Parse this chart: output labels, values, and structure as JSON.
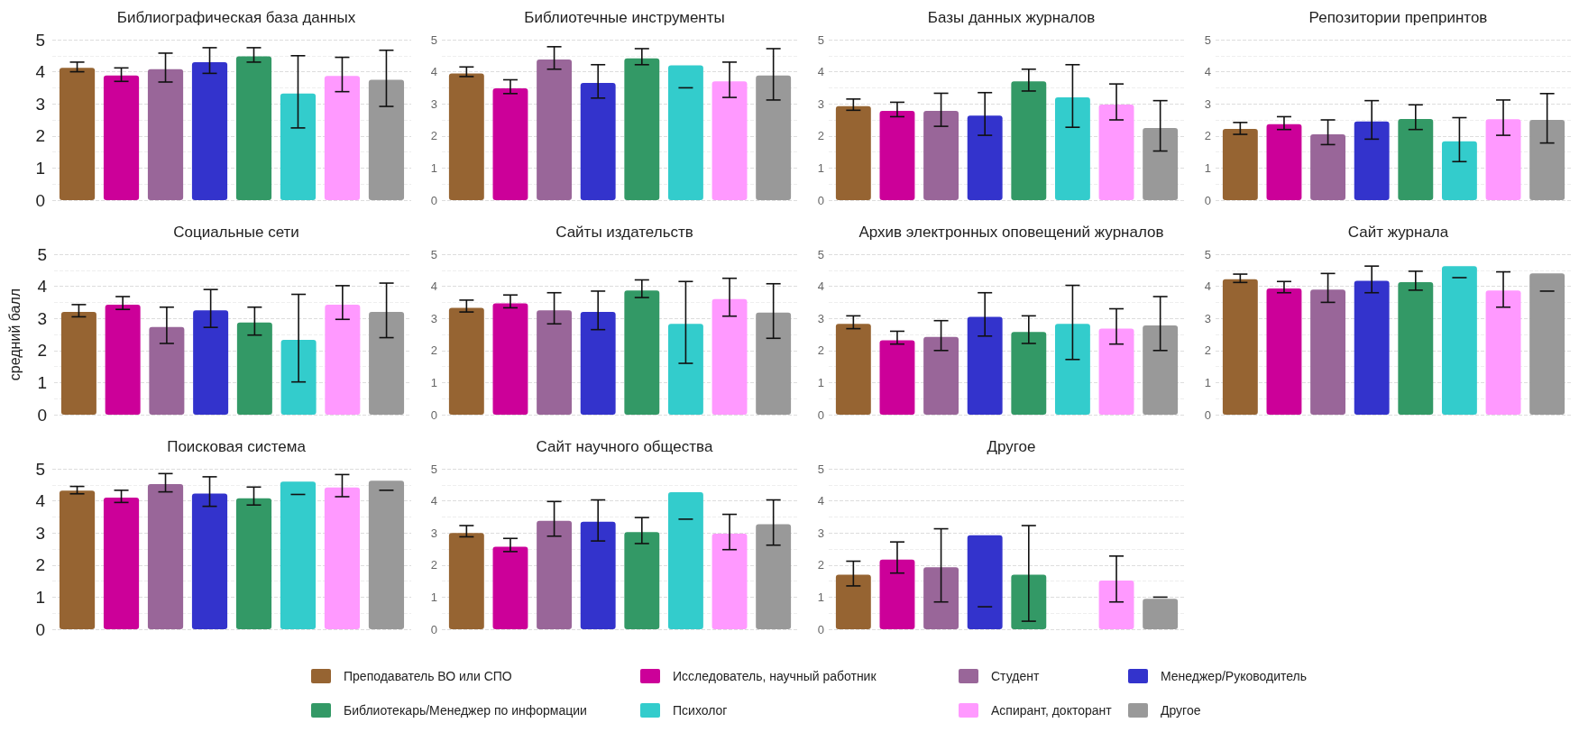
{
  "chart_data": [
    {
      "type": "bar",
      "title": "Библиографическая база данных",
      "categories": [
        null
      ],
      "ylim": [
        0,
        5
      ],
      "yticks": [
        0,
        1,
        2,
        3,
        4,
        5
      ],
      "grid": true,
      "legend": "bottom",
      "tick_labels": "y",
      "series": [
        {
          "name": "Преподаватель ВО или СПО",
          "color": "#966432",
          "values": [
            4.12
          ],
          "errors": [
            [
              4.0,
              4.3
            ]
          ]
        },
        {
          "name": "Исследователь, научный работник",
          "color": "#cc0099",
          "values": [
            3.88
          ],
          "errors": [
            [
              3.7,
              4.12
            ]
          ]
        },
        {
          "name": "Студент",
          "color": "#996699",
          "values": [
            4.08
          ],
          "errors": [
            [
              3.68,
              4.58
            ]
          ]
        },
        {
          "name": "Менеджер/Руководитель",
          "color": "#3333cc",
          "values": [
            4.3
          ],
          "errors": [
            [
              3.95,
              4.75
            ]
          ]
        },
        {
          "name": "Библиотекарь/Менеджер по информации",
          "color": "#339966",
          "values": [
            4.48
          ],
          "errors": [
            [
              4.3,
              4.75
            ]
          ]
        },
        {
          "name": "Психолог",
          "color": "#33cccc",
          "values": [
            3.32
          ],
          "errors": [
            [
              2.25,
              4.5
            ]
          ]
        },
        {
          "name": "Аспирант, докторант",
          "color": "#ff99ff",
          "values": [
            3.87
          ],
          "errors": [
            [
              3.38,
              4.45
            ]
          ]
        },
        {
          "name": "Другое",
          "color": "#999999",
          "values": [
            3.75
          ],
          "errors": [
            [
              2.92,
              4.67
            ]
          ]
        }
      ]
    },
    {
      "type": "bar",
      "title": "Библиотечные инструменты",
      "categories": [
        null
      ],
      "ylim": [
        0,
        5
      ],
      "yticks": [
        0,
        1,
        2,
        3,
        4,
        5
      ],
      "grid": true,
      "series": [
        {
          "color": "#966432",
          "values": [
            3.95
          ],
          "errors": [
            [
              3.85,
              4.15
            ]
          ]
        },
        {
          "color": "#cc0099",
          "values": [
            3.48
          ],
          "errors": [
            [
              3.32,
              3.75
            ]
          ]
        },
        {
          "color": "#996699",
          "values": [
            4.38
          ],
          "errors": [
            [
              4.08,
              4.78
            ]
          ]
        },
        {
          "color": "#3333cc",
          "values": [
            3.65
          ],
          "errors": [
            [
              3.18,
              4.22
            ]
          ]
        },
        {
          "color": "#339966",
          "values": [
            4.42
          ],
          "errors": [
            [
              4.22,
              4.72
            ]
          ]
        },
        {
          "color": "#33cccc",
          "values": [
            4.2
          ],
          "errors": [
            [
              3.5,
              3.5
            ]
          ]
        },
        {
          "color": "#ff99ff",
          "values": [
            3.7
          ],
          "errors": [
            [
              3.2,
              4.3
            ]
          ]
        },
        {
          "color": "#999999",
          "values": [
            3.88
          ],
          "errors": [
            [
              3.12,
              4.72
            ]
          ]
        }
      ]
    },
    {
      "type": "bar",
      "title": "Базы данных журналов",
      "categories": [
        null
      ],
      "ylim": [
        0,
        5
      ],
      "yticks": [
        0,
        1,
        2,
        3,
        4,
        5
      ],
      "grid": true,
      "series": [
        {
          "color": "#966432",
          "values": [
            2.93
          ],
          "errors": [
            [
              2.8,
              3.15
            ]
          ]
        },
        {
          "color": "#cc0099",
          "values": [
            2.78
          ],
          "errors": [
            [
              2.6,
              3.05
            ]
          ]
        },
        {
          "color": "#996699",
          "values": [
            2.78
          ],
          "errors": [
            [
              2.3,
              3.33
            ]
          ]
        },
        {
          "color": "#3333cc",
          "values": [
            2.63
          ],
          "errors": [
            [
              2.02,
              3.35
            ]
          ]
        },
        {
          "color": "#339966",
          "values": [
            3.7
          ],
          "errors": [
            [
              3.4,
              4.08
            ]
          ]
        },
        {
          "color": "#33cccc",
          "values": [
            3.2
          ],
          "errors": [
            [
              2.27,
              4.22
            ]
          ]
        },
        {
          "color": "#ff99ff",
          "values": [
            2.98
          ],
          "errors": [
            [
              2.5,
              3.62
            ]
          ]
        },
        {
          "color": "#999999",
          "values": [
            2.25
          ],
          "errors": [
            [
              1.53,
              3.1
            ]
          ]
        }
      ]
    },
    {
      "type": "bar",
      "title": "Репозитории препринтов",
      "categories": [
        null
      ],
      "ylim": [
        0,
        5
      ],
      "yticks": [
        0,
        1,
        2,
        3,
        4,
        5
      ],
      "grid": true,
      "series": [
        {
          "color": "#966432",
          "values": [
            2.22
          ],
          "errors": [
            [
              2.05,
              2.42
            ]
          ]
        },
        {
          "color": "#cc0099",
          "values": [
            2.37
          ],
          "errors": [
            [
              2.2,
              2.6
            ]
          ]
        },
        {
          "color": "#996699",
          "values": [
            2.05
          ],
          "errors": [
            [
              1.73,
              2.5
            ]
          ]
        },
        {
          "color": "#3333cc",
          "values": [
            2.45
          ],
          "errors": [
            [
              1.9,
              3.1
            ]
          ]
        },
        {
          "color": "#339966",
          "values": [
            2.53
          ],
          "errors": [
            [
              2.2,
              2.97
            ]
          ]
        },
        {
          "color": "#33cccc",
          "values": [
            1.83
          ],
          "errors": [
            [
              1.2,
              2.57
            ]
          ]
        },
        {
          "color": "#ff99ff",
          "values": [
            2.52
          ],
          "errors": [
            [
              2.02,
              3.12
            ]
          ]
        },
        {
          "color": "#999999",
          "values": [
            2.5
          ],
          "errors": [
            [
              1.78,
              3.32
            ]
          ]
        }
      ]
    },
    {
      "type": "bar",
      "title": "Социальные сети",
      "ylabel": "средний балл",
      "categories": [
        null
      ],
      "ylim": [
        0,
        5
      ],
      "yticks": [
        0,
        1,
        2,
        3,
        4,
        5
      ],
      "grid": true,
      "tick_labels": "y",
      "series": [
        {
          "color": "#966432",
          "values": [
            3.2
          ],
          "errors": [
            [
              3.05,
              3.43
            ]
          ]
        },
        {
          "color": "#cc0099",
          "values": [
            3.43
          ],
          "errors": [
            [
              3.28,
              3.68
            ]
          ]
        },
        {
          "color": "#996699",
          "values": [
            2.73
          ],
          "errors": [
            [
              2.22,
              3.35
            ]
          ]
        },
        {
          "color": "#3333cc",
          "values": [
            3.25
          ],
          "errors": [
            [
              2.72,
              3.9
            ]
          ]
        },
        {
          "color": "#339966",
          "values": [
            2.87
          ],
          "errors": [
            [
              2.48,
              3.35
            ]
          ]
        },
        {
          "color": "#33cccc",
          "values": [
            2.33
          ],
          "errors": [
            [
              1.02,
              3.75
            ]
          ]
        },
        {
          "color": "#ff99ff",
          "values": [
            3.43
          ],
          "errors": [
            [
              2.97,
              4.02
            ]
          ]
        },
        {
          "color": "#999999",
          "values": [
            3.2
          ],
          "errors": [
            [
              2.4,
              4.1
            ]
          ]
        }
      ]
    },
    {
      "type": "bar",
      "title": "Сайты издательств",
      "categories": [
        null
      ],
      "ylim": [
        0,
        5
      ],
      "yticks": [
        0,
        1,
        2,
        3,
        4,
        5
      ],
      "grid": true,
      "series": [
        {
          "color": "#966432",
          "values": [
            3.33
          ],
          "errors": [
            [
              3.2,
              3.57
            ]
          ]
        },
        {
          "color": "#cc0099",
          "values": [
            3.47
          ],
          "errors": [
            [
              3.33,
              3.73
            ]
          ]
        },
        {
          "color": "#996699",
          "values": [
            3.25
          ],
          "errors": [
            [
              2.83,
              3.8
            ]
          ]
        },
        {
          "color": "#3333cc",
          "values": [
            3.2
          ],
          "errors": [
            [
              2.65,
              3.85
            ]
          ]
        },
        {
          "color": "#339966",
          "values": [
            3.87
          ],
          "errors": [
            [
              3.65,
              4.2
            ]
          ]
        },
        {
          "color": "#33cccc",
          "values": [
            2.83
          ],
          "errors": [
            [
              1.6,
              4.15
            ]
          ]
        },
        {
          "color": "#ff99ff",
          "values": [
            3.6
          ],
          "errors": [
            [
              3.07,
              4.25
            ]
          ]
        },
        {
          "color": "#999999",
          "values": [
            3.18
          ],
          "errors": [
            [
              2.38,
              4.08
            ]
          ]
        }
      ]
    },
    {
      "type": "bar",
      "title": "Архив электронных оповещений журналов",
      "categories": [
        null
      ],
      "ylim": [
        0,
        5
      ],
      "yticks": [
        0,
        1,
        2,
        3,
        4,
        5
      ],
      "grid": true,
      "series": [
        {
          "color": "#966432",
          "values": [
            2.83
          ],
          "errors": [
            [
              2.68,
              3.08
            ]
          ]
        },
        {
          "color": "#cc0099",
          "values": [
            2.32
          ],
          "errors": [
            [
              2.2,
              2.6
            ]
          ]
        },
        {
          "color": "#996699",
          "values": [
            2.42
          ],
          "errors": [
            [
              2.0,
              2.93
            ]
          ]
        },
        {
          "color": "#3333cc",
          "values": [
            3.05
          ],
          "errors": [
            [
              2.45,
              3.8
            ]
          ]
        },
        {
          "color": "#339966",
          "values": [
            2.58
          ],
          "errors": [
            [
              2.22,
              3.08
            ]
          ]
        },
        {
          "color": "#33cccc",
          "values": [
            2.83
          ],
          "errors": [
            [
              1.72,
              4.03
            ]
          ]
        },
        {
          "color": "#ff99ff",
          "values": [
            2.68
          ],
          "errors": [
            [
              2.2,
              3.3
            ]
          ]
        },
        {
          "color": "#999999",
          "values": [
            2.78
          ],
          "errors": [
            [
              2.0,
              3.68
            ]
          ]
        }
      ]
    },
    {
      "type": "bar",
      "title": "Сайт журнала",
      "categories": [
        null
      ],
      "ylim": [
        0,
        5
      ],
      "yticks": [
        0,
        1,
        2,
        3,
        4,
        5
      ],
      "grid": true,
      "series": [
        {
          "color": "#966432",
          "values": [
            4.22
          ],
          "errors": [
            [
              4.12,
              4.38
            ]
          ]
        },
        {
          "color": "#cc0099",
          "values": [
            3.93
          ],
          "errors": [
            [
              3.8,
              4.15
            ]
          ]
        },
        {
          "color": "#996699",
          "values": [
            3.9
          ],
          "errors": [
            [
              3.5,
              4.4
            ]
          ]
        },
        {
          "color": "#3333cc",
          "values": [
            4.17
          ],
          "errors": [
            [
              3.8,
              4.63
            ]
          ]
        },
        {
          "color": "#339966",
          "values": [
            4.13
          ],
          "errors": [
            [
              3.88,
              4.47
            ]
          ]
        },
        {
          "color": "#33cccc",
          "values": [
            4.63
          ],
          "errors": [
            [
              4.27,
              4.27
            ]
          ]
        },
        {
          "color": "#ff99ff",
          "values": [
            3.87
          ],
          "errors": [
            [
              3.35,
              4.45
            ]
          ]
        },
        {
          "color": "#999999",
          "values": [
            4.4
          ],
          "errors": [
            [
              3.85,
              3.85
            ]
          ]
        }
      ]
    },
    {
      "type": "bar",
      "title": "Поисковая система",
      "categories": [
        null
      ],
      "ylim": [
        0,
        5
      ],
      "yticks": [
        0,
        1,
        2,
        3,
        4,
        5
      ],
      "grid": true,
      "tick_labels": "y",
      "series": [
        {
          "color": "#966432",
          "values": [
            4.32
          ],
          "errors": [
            [
              4.22,
              4.45
            ]
          ]
        },
        {
          "color": "#cc0099",
          "values": [
            4.1
          ],
          "errors": [
            [
              3.95,
              4.33
            ]
          ]
        },
        {
          "color": "#996699",
          "values": [
            4.52
          ],
          "errors": [
            [
              4.28,
              4.85
            ]
          ]
        },
        {
          "color": "#3333cc",
          "values": [
            4.23
          ],
          "errors": [
            [
              3.83,
              4.75
            ]
          ]
        },
        {
          "color": "#339966",
          "values": [
            4.08
          ],
          "errors": [
            [
              3.87,
              4.43
            ]
          ]
        },
        {
          "color": "#33cccc",
          "values": [
            4.6
          ],
          "errors": [
            [
              4.2,
              4.2
            ]
          ]
        },
        {
          "color": "#ff99ff",
          "values": [
            4.42
          ],
          "errors": [
            [
              4.13,
              4.82
            ]
          ]
        },
        {
          "color": "#999999",
          "values": [
            4.63
          ],
          "errors": [
            [
              4.33,
              4.33
            ]
          ]
        }
      ]
    },
    {
      "type": "bar",
      "title": "Сайт научного общества",
      "categories": [
        null
      ],
      "ylim": [
        0,
        5
      ],
      "yticks": [
        0,
        1,
        2,
        3,
        4,
        5
      ],
      "grid": true,
      "series": [
        {
          "color": "#966432",
          "values": [
            3.0
          ],
          "errors": [
            [
              2.88,
              3.23
            ]
          ]
        },
        {
          "color": "#cc0099",
          "values": [
            2.57
          ],
          "errors": [
            [
              2.42,
              2.83
            ]
          ]
        },
        {
          "color": "#996699",
          "values": [
            3.38
          ],
          "errors": [
            [
              2.9,
              3.98
            ]
          ]
        },
        {
          "color": "#3333cc",
          "values": [
            3.35
          ],
          "errors": [
            [
              2.75,
              4.03
            ]
          ]
        },
        {
          "color": "#339966",
          "values": [
            3.03
          ],
          "errors": [
            [
              2.67,
              3.48
            ]
          ]
        },
        {
          "color": "#33cccc",
          "values": [
            4.27
          ],
          "errors": [
            [
              3.43,
              3.43
            ]
          ]
        },
        {
          "color": "#ff99ff",
          "values": [
            2.98
          ],
          "errors": [
            [
              2.48,
              3.58
            ]
          ]
        },
        {
          "color": "#999999",
          "values": [
            3.27
          ],
          "errors": [
            [
              2.62,
              4.03
            ]
          ]
        }
      ]
    },
    {
      "type": "bar",
      "title": "Другое",
      "categories": [
        null
      ],
      "ylim": [
        0,
        5
      ],
      "yticks": [
        0,
        1,
        2,
        3,
        4,
        5
      ],
      "grid": true,
      "series": [
        {
          "color": "#966432",
          "values": [
            1.7
          ],
          "errors": [
            [
              1.35,
              2.12
            ]
          ]
        },
        {
          "color": "#cc0099",
          "values": [
            2.17
          ],
          "errors": [
            [
              1.75,
              2.72
            ]
          ]
        },
        {
          "color": "#996699",
          "values": [
            1.93
          ],
          "errors": [
            [
              0.85,
              3.13
            ]
          ]
        },
        {
          "color": "#3333cc",
          "values": [
            2.93
          ],
          "errors": [
            [
              0.7,
              0.7
            ]
          ]
        },
        {
          "color": "#339966",
          "values": [
            1.7
          ],
          "errors": [
            [
              0.25,
              3.23
            ]
          ]
        },
        {
          "color": "#33cccc",
          "values": [
            null
          ],
          "errors": [
            null
          ]
        },
        {
          "color": "#ff99ff",
          "values": [
            1.52
          ],
          "errors": [
            [
              0.85,
              2.28
            ]
          ]
        },
        {
          "color": "#999999",
          "values": [
            0.95
          ],
          "errors": [
            [
              1.0,
              1.0
            ]
          ]
        }
      ]
    }
  ]
}
